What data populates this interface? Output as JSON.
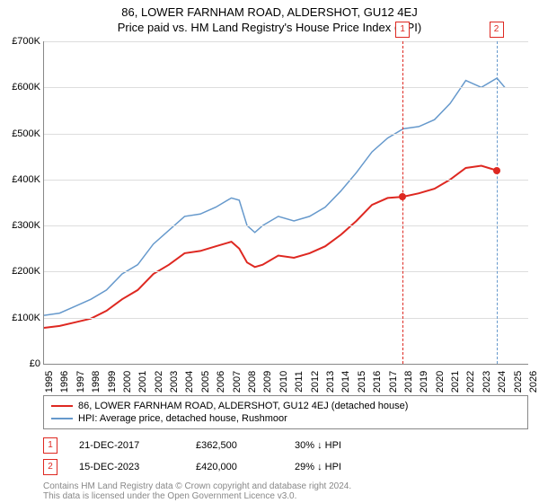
{
  "title": "86, LOWER FARNHAM ROAD, ALDERSHOT, GU12 4EJ",
  "subtitle": "Price paid vs. HM Land Registry's House Price Index (HPI)",
  "chart": {
    "type": "line",
    "background_color": "#ffffff",
    "grid_color": "#dddddd",
    "axis_color": "#888888",
    "ylim": [
      0,
      700000
    ],
    "ytick_step": 100000,
    "yticks": [
      "£0",
      "£100K",
      "£200K",
      "£300K",
      "£400K",
      "£500K",
      "£600K",
      "£700K"
    ],
    "xlim": [
      1995,
      2026
    ],
    "xticks": [
      "1995",
      "1996",
      "1997",
      "1998",
      "1999",
      "2000",
      "2001",
      "2002",
      "2003",
      "2004",
      "2005",
      "2006",
      "2007",
      "2008",
      "2009",
      "2010",
      "2011",
      "2012",
      "2013",
      "2014",
      "2015",
      "2016",
      "2017",
      "2018",
      "2019",
      "2020",
      "2021",
      "2022",
      "2023",
      "2024",
      "2025",
      "2026"
    ],
    "series": [
      {
        "name": "price_paid",
        "color": "#de2821",
        "width": 2,
        "points": [
          [
            1995,
            78
          ],
          [
            1996,
            82
          ],
          [
            1997,
            90
          ],
          [
            1998,
            98
          ],
          [
            1999,
            115
          ],
          [
            2000,
            140
          ],
          [
            2001,
            160
          ],
          [
            2002,
            195
          ],
          [
            2003,
            215
          ],
          [
            2004,
            240
          ],
          [
            2005,
            245
          ],
          [
            2006,
            255
          ],
          [
            2007,
            265
          ],
          [
            2007.5,
            250
          ],
          [
            2008,
            220
          ],
          [
            2008.5,
            210
          ],
          [
            2009,
            215
          ],
          [
            2010,
            235
          ],
          [
            2011,
            230
          ],
          [
            2012,
            240
          ],
          [
            2013,
            255
          ],
          [
            2014,
            280
          ],
          [
            2015,
            310
          ],
          [
            2016,
            345
          ],
          [
            2017,
            360
          ],
          [
            2017.96,
            362.5
          ],
          [
            2019,
            370
          ],
          [
            2020,
            380
          ],
          [
            2021,
            400
          ],
          [
            2022,
            425
          ],
          [
            2023,
            430
          ],
          [
            2023.96,
            420
          ],
          [
            2024.2,
            418
          ]
        ]
      },
      {
        "name": "hpi",
        "color": "#6699cc",
        "width": 1.5,
        "points": [
          [
            1995,
            105
          ],
          [
            1996,
            110
          ],
          [
            1997,
            125
          ],
          [
            1998,
            140
          ],
          [
            1999,
            160
          ],
          [
            2000,
            195
          ],
          [
            2001,
            215
          ],
          [
            2002,
            260
          ],
          [
            2003,
            290
          ],
          [
            2004,
            320
          ],
          [
            2005,
            325
          ],
          [
            2006,
            340
          ],
          [
            2007,
            360
          ],
          [
            2007.5,
            355
          ],
          [
            2008,
            300
          ],
          [
            2008.5,
            285
          ],
          [
            2009,
            300
          ],
          [
            2010,
            320
          ],
          [
            2011,
            310
          ],
          [
            2012,
            320
          ],
          [
            2013,
            340
          ],
          [
            2014,
            375
          ],
          [
            2015,
            415
          ],
          [
            2016,
            460
          ],
          [
            2017,
            490
          ],
          [
            2018,
            510
          ],
          [
            2019,
            515
          ],
          [
            2020,
            530
          ],
          [
            2021,
            565
          ],
          [
            2022,
            615
          ],
          [
            2023,
            600
          ],
          [
            2024,
            620
          ],
          [
            2024.5,
            600
          ]
        ]
      }
    ],
    "markers": [
      {
        "n": "1",
        "x": 2017.96,
        "y": 362.5,
        "line_color": "#de2821"
      },
      {
        "n": "2",
        "x": 2023.96,
        "y": 420.0,
        "line_color": "#6699cc"
      }
    ]
  },
  "legend": {
    "items": [
      {
        "color": "#de2821",
        "label": "86, LOWER FARNHAM ROAD, ALDERSHOT, GU12 4EJ (detached house)"
      },
      {
        "color": "#6699cc",
        "label": "HPI: Average price, detached house, Rushmoor"
      }
    ]
  },
  "sales": [
    {
      "n": "1",
      "date": "21-DEC-2017",
      "price": "£362,500",
      "diff": "30% ↓ HPI"
    },
    {
      "n": "2",
      "date": "15-DEC-2023",
      "price": "£420,000",
      "diff": "29% ↓ HPI"
    }
  ],
  "credits": {
    "line1": "Contains HM Land Registry data © Crown copyright and database right 2024.",
    "line2": "This data is licensed under the Open Government Licence v3.0."
  }
}
